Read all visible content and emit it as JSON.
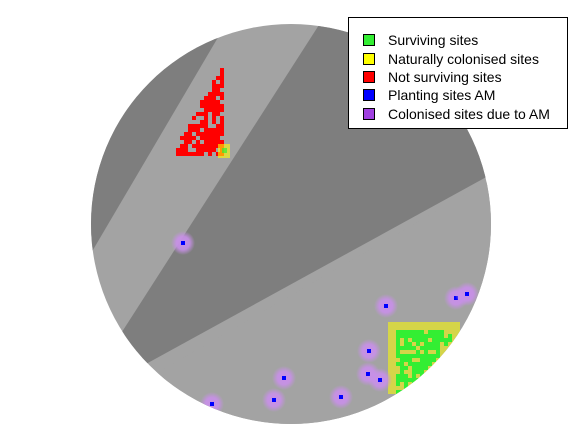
{
  "legend": {
    "items": [
      {
        "label": "Surviving sites",
        "color": "#33ee33"
      },
      {
        "label": "Naturally colonised sites",
        "color": "#ffff00"
      },
      {
        "label": "Not surviving sites",
        "color": "#ff0000"
      },
      {
        "label": "Planting sites AM",
        "color": "#0000ff"
      },
      {
        "label": "Colonised sites due to AM",
        "color": "#a040e0"
      }
    ]
  },
  "colors": {
    "background": "#ffffff",
    "terrain_light": "#a3a3a3",
    "terrain_dark": "#7e7e7e",
    "halo": "#c890e8"
  }
}
